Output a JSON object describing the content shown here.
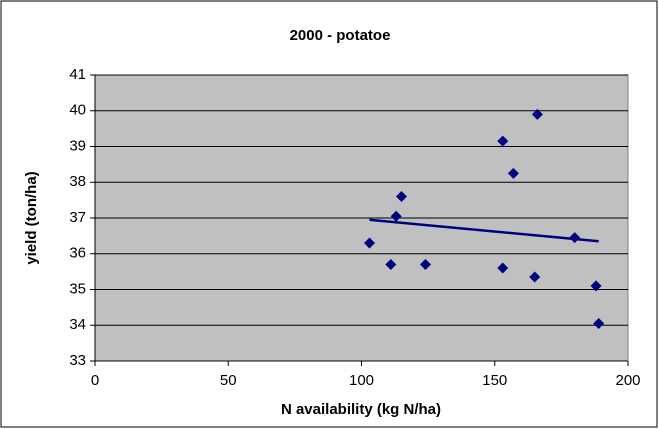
{
  "chart_data": {
    "type": "scatter",
    "title": "2000 - potatoe",
    "x_label": "N availability (kg N/ha)",
    "y_label": "yield (ton/ha)",
    "series": [
      {
        "color": "#000080",
        "x": [
          103,
          111,
          113,
          115,
          124,
          153,
          153,
          157,
          165,
          166,
          180,
          188,
          189
        ],
        "values": [
          36.3,
          35.7,
          37.05,
          37.6,
          35.7,
          39.15,
          35.6,
          38.25,
          35.35,
          39.9,
          36.45,
          35.1,
          34.05
        ]
      }
    ],
    "trendline": {
      "color": "#000080",
      "x": [
        103,
        189
      ],
      "values": [
        36.95,
        36.35
      ]
    },
    "xlim": [
      0,
      200
    ],
    "xticks": [
      0,
      50,
      100,
      150,
      200
    ],
    "ylim": [
      33,
      41
    ],
    "yticks": [
      33,
      34,
      35,
      36,
      37,
      38,
      39,
      40,
      41
    ],
    "grid": true
  }
}
